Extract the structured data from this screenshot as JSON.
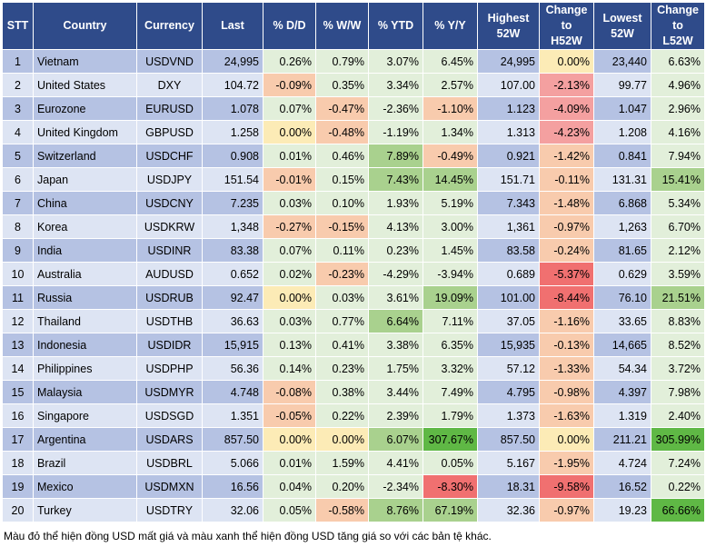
{
  "headers": [
    "STT",
    "Country",
    "Currency",
    "Last",
    "% D/D",
    "% W/W",
    "% YTD",
    "% Y/Y",
    "Highest\n52W",
    "Change\nto\nH52W",
    "Lowest\n52W",
    "Change\nto\nL52W"
  ],
  "rows": [
    [
      "1",
      "Vietnam",
      "USDVND",
      "24,995",
      "0.26%",
      "0.79%",
      "3.07%",
      "6.45%",
      "24,995",
      "0.00%",
      "23,440",
      "6.63%"
    ],
    [
      "2",
      "United States",
      "DXY",
      "104.72",
      "-0.09%",
      "0.35%",
      "3.34%",
      "2.57%",
      "107.00",
      "-2.13%",
      "99.77",
      "4.96%"
    ],
    [
      "3",
      "Eurozone",
      "EURUSD",
      "1.078",
      "0.07%",
      "-0.47%",
      "-2.36%",
      "-1.10%",
      "1.123",
      "-4.09%",
      "1.047",
      "2.96%"
    ],
    [
      "4",
      "United Kingdom",
      "GBPUSD",
      "1.258",
      "0.00%",
      "-0.48%",
      "-1.19%",
      "1.34%",
      "1.313",
      "-4.23%",
      "1.208",
      "4.16%"
    ],
    [
      "5",
      "Switzerland",
      "USDCHF",
      "0.908",
      "0.01%",
      "0.46%",
      "7.89%",
      "-0.49%",
      "0.921",
      "-1.42%",
      "0.841",
      "7.94%"
    ],
    [
      "6",
      "Japan",
      "USDJPY",
      "151.54",
      "-0.01%",
      "0.15%",
      "7.43%",
      "14.45%",
      "151.71",
      "-0.11%",
      "131.31",
      "15.41%"
    ],
    [
      "7",
      "China",
      "USDCNY",
      "7.235",
      "0.03%",
      "0.10%",
      "1.93%",
      "5.19%",
      "7.343",
      "-1.48%",
      "6.868",
      "5.34%"
    ],
    [
      "8",
      "Korea",
      "USDKRW",
      "1,348",
      "-0.27%",
      "-0.15%",
      "4.13%",
      "3.00%",
      "1,361",
      "-0.97%",
      "1,263",
      "6.70%"
    ],
    [
      "9",
      "India",
      "USDINR",
      "83.38",
      "0.07%",
      "0.11%",
      "0.23%",
      "1.45%",
      "83.58",
      "-0.24%",
      "81.65",
      "2.12%"
    ],
    [
      "10",
      "Australia",
      "AUDUSD",
      "0.652",
      "0.02%",
      "-0.23%",
      "-4.29%",
      "-3.94%",
      "0.689",
      "-5.37%",
      "0.629",
      "3.59%"
    ],
    [
      "11",
      "Russia",
      "USDRUB",
      "92.47",
      "0.00%",
      "0.03%",
      "3.61%",
      "19.09%",
      "101.00",
      "-8.44%",
      "76.10",
      "21.51%"
    ],
    [
      "12",
      "Thailand",
      "USDTHB",
      "36.63",
      "0.03%",
      "0.77%",
      "6.64%",
      "7.11%",
      "37.05",
      "-1.16%",
      "33.65",
      "8.83%"
    ],
    [
      "13",
      "Indonesia",
      "USDIDR",
      "15,915",
      "0.13%",
      "0.41%",
      "3.38%",
      "6.35%",
      "15,935",
      "-0.13%",
      "14,665",
      "8.52%"
    ],
    [
      "14",
      "Philippines",
      "USDPHP",
      "56.36",
      "0.14%",
      "0.23%",
      "1.75%",
      "3.32%",
      "57.12",
      "-1.33%",
      "54.34",
      "3.72%"
    ],
    [
      "15",
      "Malaysia",
      "USDMYR",
      "4.748",
      "-0.08%",
      "0.38%",
      "3.44%",
      "7.49%",
      "4.795",
      "-0.98%",
      "4.397",
      "7.98%"
    ],
    [
      "16",
      "Singapore",
      "USDSGD",
      "1.351",
      "-0.05%",
      "0.22%",
      "2.39%",
      "1.79%",
      "1.373",
      "-1.63%",
      "1.319",
      "2.40%"
    ],
    [
      "17",
      "Argentina",
      "USDARS",
      "857.50",
      "0.00%",
      "0.00%",
      "6.07%",
      "307.67%",
      "857.50",
      "0.00%",
      "211.21",
      "305.99%"
    ],
    [
      "18",
      "Brazil",
      "USDBRL",
      "5.066",
      "0.01%",
      "1.59%",
      "4.41%",
      "0.05%",
      "5.167",
      "-1.95%",
      "4.724",
      "7.24%"
    ],
    [
      "19",
      "Mexico",
      "USDMXN",
      "16.56",
      "0.04%",
      "0.20%",
      "-2.34%",
      "-8.30%",
      "18.31",
      "-9.58%",
      "16.52",
      "0.22%"
    ],
    [
      "20",
      "Turkey",
      "USDTRY",
      "32.06",
      "0.05%",
      "-0.58%",
      "8.76%",
      "67.19%",
      "32.36",
      "-0.97%",
      "19.23",
      "66.66%"
    ]
  ],
  "colors": {
    "header_bg": "#2F4B8A",
    "row_odd": "#B5C2E3",
    "row_even": "#DDE4F3",
    "neutral": "#FCEBB6",
    "pos_light": "#E2EFDA",
    "pos_mid": "#A9D18E",
    "pos_strong": "#5FB845",
    "neg_light": "#F8CBAD",
    "neg_mid": "#F4A0A0",
    "neg_strong": "#F07070"
  },
  "note": "Màu đỏ thể hiện đồng USD mất giá và màu xanh thể hiện đồng USD tăng giá so với các bản tệ khác."
}
